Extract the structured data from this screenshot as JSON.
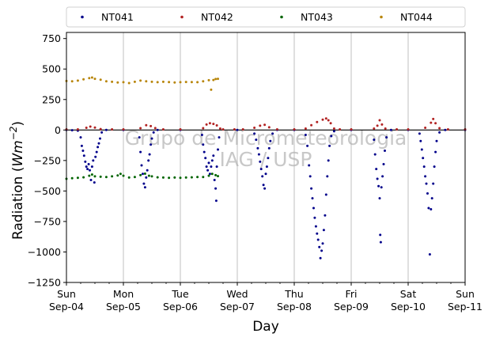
{
  "chart_data": {
    "type": "scatter",
    "title": "",
    "xlabel": "Day",
    "ylabel": "Radiation (Wm⁻²)",
    "ylabel_parts": {
      "text": "Radiation (",
      "var": "Wm",
      "sup": "−2",
      "close": ")"
    },
    "xlim": [
      0,
      7
    ],
    "ylim": [
      -1250,
      800
    ],
    "yticks": [
      {
        "value": 750,
        "label": "750"
      },
      {
        "value": 500,
        "label": "500"
      },
      {
        "value": 250,
        "label": "250"
      },
      {
        "value": 0,
        "label": "0"
      },
      {
        "value": -250,
        "label": "−250"
      },
      {
        "value": -500,
        "label": "−500"
      },
      {
        "value": -750,
        "label": "−750"
      },
      {
        "value": -1000,
        "label": "−1000"
      },
      {
        "value": -1250,
        "label": "−1250"
      }
    ],
    "xticks": [
      {
        "value": 0,
        "day": "Sun",
        "date": "Sep-04"
      },
      {
        "value": 1,
        "day": "Mon",
        "date": "Sep-05"
      },
      {
        "value": 2,
        "day": "Tue",
        "date": "Sep-06"
      },
      {
        "value": 3,
        "day": "Wed",
        "date": "Sep-07"
      },
      {
        "value": 4,
        "day": "Thu",
        "date": "Sep-08"
      },
      {
        "value": 5,
        "day": "Fri",
        "date": "Sep-09"
      },
      {
        "value": 6,
        "day": "Sat",
        "date": "Sep-10"
      },
      {
        "value": 7,
        "day": "Sun",
        "date": "Sep-11"
      }
    ],
    "grid": "vertical",
    "legend_placement": "top",
    "watermark": [
      "Grupo de Micrometeorologia",
      "IAG / USP"
    ],
    "series": [
      {
        "name": "NT041",
        "color": "#00008b",
        "points": [
          [
            0.0,
            0
          ],
          [
            0.1,
            -2
          ],
          [
            0.2,
            -5
          ],
          [
            0.25,
            -60
          ],
          [
            0.27,
            -130
          ],
          [
            0.29,
            -170
          ],
          [
            0.31,
            -210
          ],
          [
            0.33,
            -260
          ],
          [
            0.35,
            -300
          ],
          [
            0.37,
            -320
          ],
          [
            0.39,
            -280
          ],
          [
            0.41,
            -330
          ],
          [
            0.43,
            -410
          ],
          [
            0.45,
            -300
          ],
          [
            0.47,
            -250
          ],
          [
            0.49,
            -430
          ],
          [
            0.51,
            -220
          ],
          [
            0.53,
            -180
          ],
          [
            0.55,
            -140
          ],
          [
            0.57,
            -110
          ],
          [
            0.59,
            -70
          ],
          [
            0.62,
            -20
          ],
          [
            0.7,
            0
          ],
          [
            1.0,
            0
          ],
          [
            1.28,
            -60
          ],
          [
            1.3,
            -180
          ],
          [
            1.32,
            -290
          ],
          [
            1.34,
            -360
          ],
          [
            1.36,
            -440
          ],
          [
            1.38,
            -470
          ],
          [
            1.4,
            -390
          ],
          [
            1.42,
            -330
          ],
          [
            1.44,
            -250
          ],
          [
            1.46,
            -200
          ],
          [
            1.48,
            -120
          ],
          [
            1.5,
            -70
          ],
          [
            1.53,
            -20
          ],
          [
            1.6,
            0
          ],
          [
            2.0,
            0
          ],
          [
            2.38,
            -40
          ],
          [
            2.4,
            -120
          ],
          [
            2.42,
            -180
          ],
          [
            2.44,
            -230
          ],
          [
            2.46,
            -300
          ],
          [
            2.48,
            -330
          ],
          [
            2.5,
            -270
          ],
          [
            2.52,
            -360
          ],
          [
            2.54,
            -300
          ],
          [
            2.56,
            -250
          ],
          [
            2.58,
            -210
          ],
          [
            2.6,
            -410
          ],
          [
            2.62,
            -480
          ],
          [
            2.63,
            -580
          ],
          [
            2.64,
            -300
          ],
          [
            2.66,
            -160
          ],
          [
            2.68,
            -60
          ],
          [
            3.0,
            0
          ],
          [
            3.3,
            -30
          ],
          [
            3.33,
            -80
          ],
          [
            3.36,
            -150
          ],
          [
            3.38,
            -200
          ],
          [
            3.4,
            -260
          ],
          [
            3.42,
            -320
          ],
          [
            3.44,
            -380
          ],
          [
            3.46,
            -450
          ],
          [
            3.48,
            -480
          ],
          [
            3.5,
            -360
          ],
          [
            3.52,
            -300
          ],
          [
            3.54,
            -230
          ],
          [
            3.56,
            -150
          ],
          [
            3.58,
            -90
          ],
          [
            3.62,
            -30
          ],
          [
            3.7,
            0
          ],
          [
            4.0,
            0
          ],
          [
            4.2,
            -40
          ],
          [
            4.23,
            -130
          ],
          [
            4.26,
            -290
          ],
          [
            4.28,
            -380
          ],
          [
            4.3,
            -480
          ],
          [
            4.32,
            -560
          ],
          [
            4.34,
            -640
          ],
          [
            4.36,
            -720
          ],
          [
            4.38,
            -790
          ],
          [
            4.4,
            -850
          ],
          [
            4.42,
            -900
          ],
          [
            4.44,
            -960
          ],
          [
            4.46,
            -1050
          ],
          [
            4.48,
            -990
          ],
          [
            4.5,
            -930
          ],
          [
            4.52,
            -820
          ],
          [
            4.54,
            -700
          ],
          [
            4.56,
            -530
          ],
          [
            4.58,
            -380
          ],
          [
            4.6,
            -250
          ],
          [
            4.62,
            -130
          ],
          [
            4.65,
            -50
          ],
          [
            4.7,
            -10
          ],
          [
            5.0,
            0
          ],
          [
            5.4,
            -80
          ],
          [
            5.42,
            -200
          ],
          [
            5.44,
            -320
          ],
          [
            5.46,
            -400
          ],
          [
            5.48,
            -460
          ],
          [
            5.5,
            -560
          ],
          [
            5.51,
            -860
          ],
          [
            5.52,
            -920
          ],
          [
            5.53,
            -470
          ],
          [
            5.55,
            -380
          ],
          [
            5.57,
            -280
          ],
          [
            5.59,
            -170
          ],
          [
            5.62,
            -60
          ],
          [
            5.7,
            0
          ],
          [
            6.0,
            0
          ],
          [
            6.2,
            -30
          ],
          [
            6.22,
            -90
          ],
          [
            6.24,
            -160
          ],
          [
            6.26,
            -230
          ],
          [
            6.28,
            -300
          ],
          [
            6.3,
            -380
          ],
          [
            6.32,
            -440
          ],
          [
            6.34,
            -520
          ],
          [
            6.36,
            -640
          ],
          [
            6.38,
            -1020
          ],
          [
            6.4,
            -650
          ],
          [
            6.42,
            -560
          ],
          [
            6.44,
            -440
          ],
          [
            6.46,
            -300
          ],
          [
            6.48,
            -180
          ],
          [
            6.5,
            -90
          ],
          [
            6.55,
            -20
          ],
          [
            6.65,
            0
          ],
          [
            7.0,
            0
          ]
        ]
      },
      {
        "name": "NT042",
        "color": "#b22222",
        "points": [
          [
            0.0,
            5
          ],
          [
            0.2,
            5
          ],
          [
            0.35,
            18
          ],
          [
            0.42,
            28
          ],
          [
            0.5,
            20
          ],
          [
            0.6,
            8
          ],
          [
            0.8,
            5
          ],
          [
            1.0,
            5
          ],
          [
            1.3,
            15
          ],
          [
            1.4,
            40
          ],
          [
            1.48,
            32
          ],
          [
            1.56,
            16
          ],
          [
            1.7,
            5
          ],
          [
            2.0,
            5
          ],
          [
            2.4,
            15
          ],
          [
            2.46,
            45
          ],
          [
            2.52,
            55
          ],
          [
            2.58,
            50
          ],
          [
            2.64,
            38
          ],
          [
            2.7,
            12
          ],
          [
            2.75,
            5
          ],
          [
            2.95,
            5
          ],
          [
            3.1,
            5
          ],
          [
            3.3,
            18
          ],
          [
            3.4,
            35
          ],
          [
            3.48,
            42
          ],
          [
            3.56,
            22
          ],
          [
            3.7,
            5
          ],
          [
            4.0,
            5
          ],
          [
            4.2,
            12
          ],
          [
            4.3,
            40
          ],
          [
            4.4,
            65
          ],
          [
            4.5,
            85
          ],
          [
            4.56,
            95
          ],
          [
            4.6,
            80
          ],
          [
            4.64,
            55
          ],
          [
            4.7,
            12
          ],
          [
            4.8,
            5
          ],
          [
            5.0,
            5
          ],
          [
            5.4,
            12
          ],
          [
            5.46,
            35
          ],
          [
            5.5,
            80
          ],
          [
            5.54,
            45
          ],
          [
            5.6,
            12
          ],
          [
            5.8,
            5
          ],
          [
            6.0,
            5
          ],
          [
            6.3,
            18
          ],
          [
            6.4,
            60
          ],
          [
            6.44,
            90
          ],
          [
            6.48,
            55
          ],
          [
            6.55,
            15
          ],
          [
            6.7,
            5
          ],
          [
            7.0,
            5
          ]
        ]
      },
      {
        "name": "NT043",
        "color": "#006400",
        "points": [
          [
            0.0,
            -400
          ],
          [
            0.1,
            -395
          ],
          [
            0.2,
            -392
          ],
          [
            0.3,
            -388
          ],
          [
            0.4,
            -375
          ],
          [
            0.45,
            -365
          ],
          [
            0.5,
            -380
          ],
          [
            0.6,
            -383
          ],
          [
            0.7,
            -385
          ],
          [
            0.8,
            -380
          ],
          [
            0.9,
            -372
          ],
          [
            0.95,
            -360
          ],
          [
            1.0,
            -375
          ],
          [
            1.1,
            -390
          ],
          [
            1.2,
            -385
          ],
          [
            1.3,
            -370
          ],
          [
            1.38,
            -358
          ],
          [
            1.45,
            -375
          ],
          [
            1.5,
            -380
          ],
          [
            1.6,
            -388
          ],
          [
            1.7,
            -390
          ],
          [
            1.8,
            -392
          ],
          [
            1.9,
            -390
          ],
          [
            2.0,
            -392
          ],
          [
            2.1,
            -390
          ],
          [
            2.2,
            -388
          ],
          [
            2.3,
            -386
          ],
          [
            2.4,
            -385
          ],
          [
            2.5,
            -375
          ],
          [
            2.56,
            -360
          ],
          [
            2.62,
            -370
          ],
          [
            2.66,
            -378
          ]
        ]
      },
      {
        "name": "NT044",
        "color": "#b8860b",
        "points": [
          [
            0.0,
            402
          ],
          [
            0.1,
            400
          ],
          [
            0.2,
            405
          ],
          [
            0.3,
            415
          ],
          [
            0.4,
            425
          ],
          [
            0.45,
            430
          ],
          [
            0.5,
            420
          ],
          [
            0.6,
            412
          ],
          [
            0.7,
            400
          ],
          [
            0.8,
            395
          ],
          [
            0.9,
            390
          ],
          [
            1.0,
            392
          ],
          [
            1.1,
            385
          ],
          [
            1.2,
            395
          ],
          [
            1.3,
            405
          ],
          [
            1.4,
            400
          ],
          [
            1.5,
            395
          ],
          [
            1.6,
            392
          ],
          [
            1.7,
            395
          ],
          [
            1.8,
            393
          ],
          [
            1.9,
            390
          ],
          [
            2.0,
            392
          ],
          [
            2.1,
            394
          ],
          [
            2.2,
            393
          ],
          [
            2.3,
            392
          ],
          [
            2.4,
            400
          ],
          [
            2.5,
            408
          ],
          [
            2.54,
            330
          ],
          [
            2.58,
            410
          ],
          [
            2.62,
            418
          ],
          [
            2.66,
            420
          ]
        ]
      }
    ]
  }
}
